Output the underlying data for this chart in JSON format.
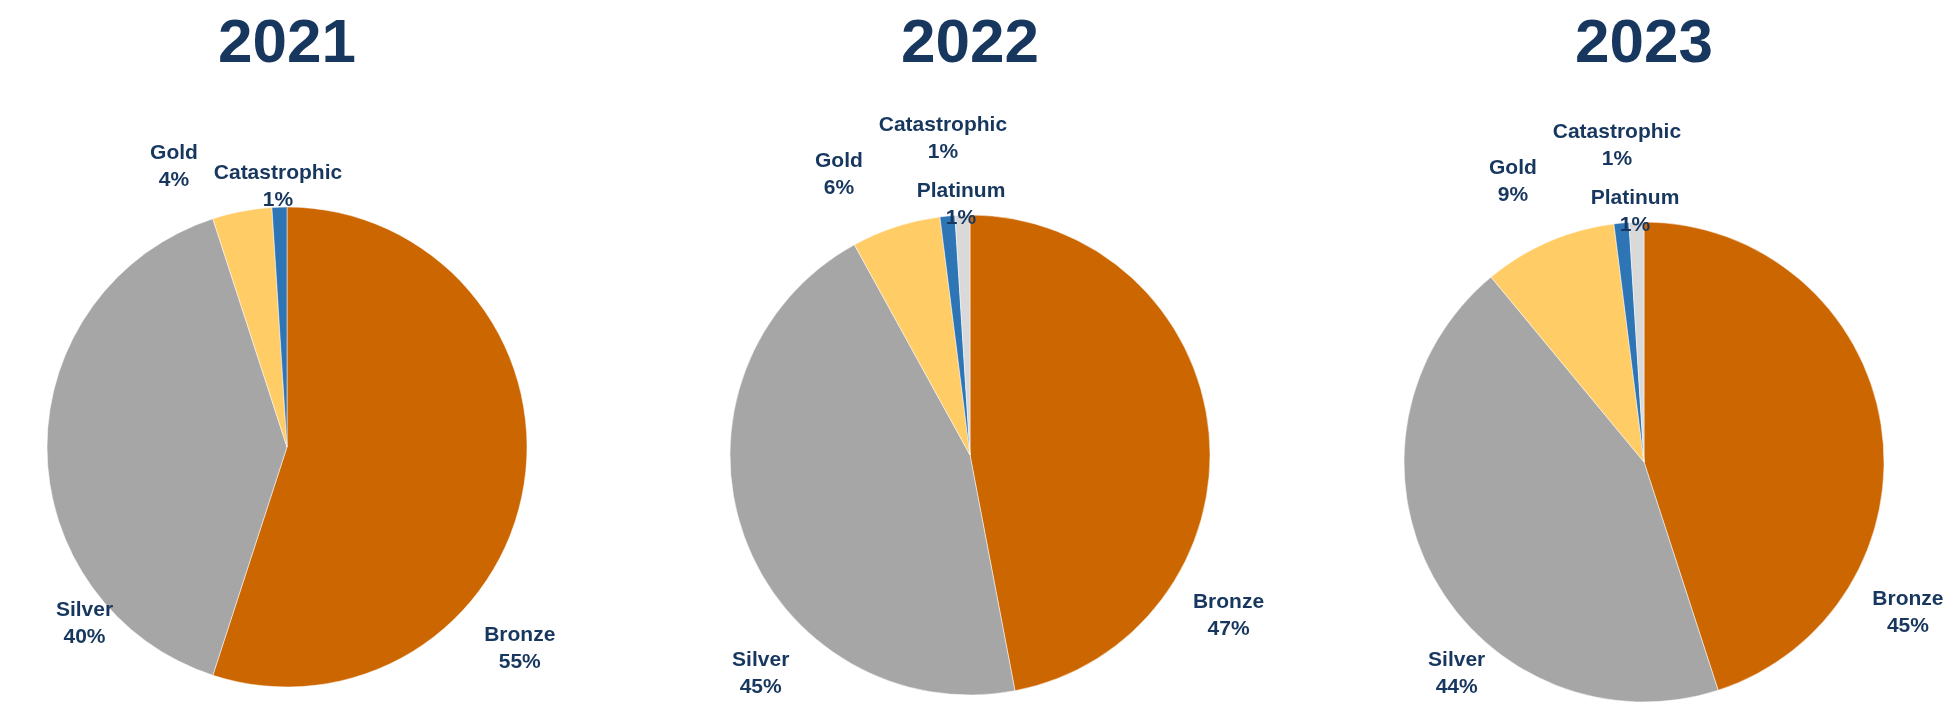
{
  "chart_data": [
    {
      "type": "pie",
      "title": "2021",
      "categories": [
        "Bronze",
        "Silver",
        "Gold",
        "Catastrophic"
      ],
      "values": [
        55,
        40,
        4,
        1
      ],
      "value_labels": [
        "55%",
        "40%",
        "4%",
        "1%"
      ],
      "colors": [
        "#cc6600",
        "#a6a6a6",
        "#ffcc66",
        "#2e75b6"
      ]
    },
    {
      "type": "pie",
      "title": "2022",
      "categories": [
        "Bronze",
        "Silver",
        "Gold",
        "Catastrophic",
        "Platinum"
      ],
      "values": [
        47,
        45,
        6,
        1,
        1
      ],
      "value_labels": [
        "47%",
        "45%",
        "6%",
        "1%",
        "1%"
      ],
      "colors": [
        "#cc6600",
        "#a6a6a6",
        "#ffcc66",
        "#2e75b6",
        "#d9d9d9"
      ]
    },
    {
      "type": "pie",
      "title": "2023",
      "categories": [
        "Bronze",
        "Silver",
        "Gold",
        "Catastrophic",
        "Platinum"
      ],
      "values": [
        45,
        44,
        9,
        1,
        1
      ],
      "value_labels": [
        "45%",
        "44%",
        "9%",
        "1%",
        "1%"
      ],
      "colors": [
        "#cc6600",
        "#a6a6a6",
        "#ffcc66",
        "#2e75b6",
        "#d9d9d9"
      ]
    }
  ]
}
